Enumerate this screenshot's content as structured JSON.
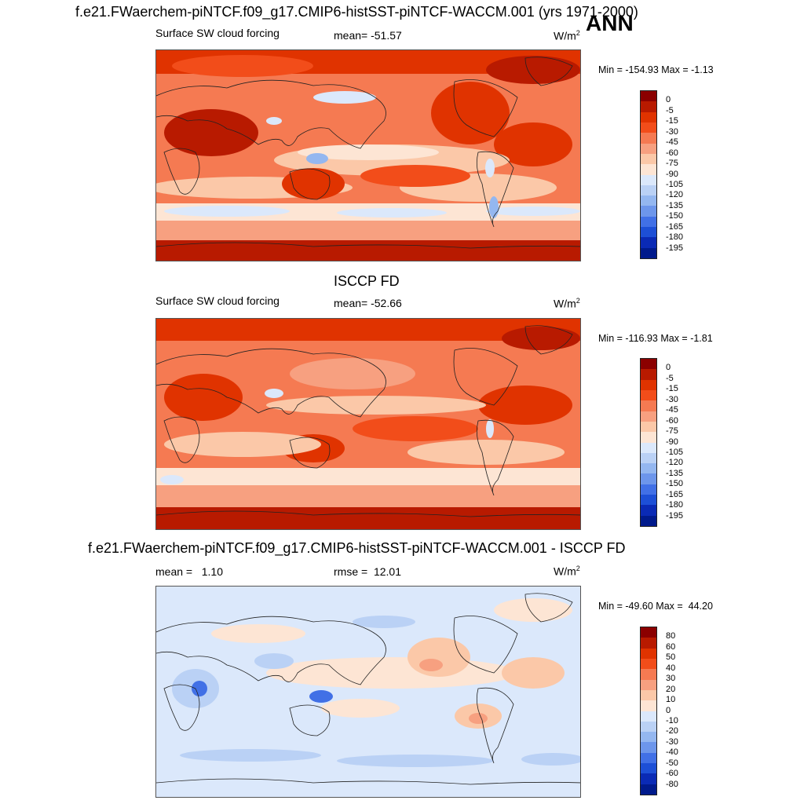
{
  "figure": {
    "title": "f.e21.FWaerchem-piNTCF.f09_g17.CMIP6-histSST-piNTCF-WACCM.001 (yrs 1971-2000)",
    "season": "ANN"
  },
  "panels": [
    {
      "id": "model",
      "heading": "",
      "left_label": "Surface SW cloud forcing",
      "center_label": "mean= -51.57",
      "unit": "W/m",
      "unit_sup": "2",
      "minmax": "Min = -154.93 Max =  -1.13",
      "colorbar": [
        "0",
        "-5",
        "-15",
        "-30",
        "-45",
        "-60",
        "-75",
        "-90",
        "-105",
        "-120",
        "-135",
        "-150",
        "-165",
        "-180",
        "-195"
      ],
      "colors": [
        "#8b0000",
        "#b81a00",
        "#e03300",
        "#f24d1a",
        "#f57a52",
        "#f7a080",
        "#fbc8a8",
        "#fde5d4",
        "#dbe8fb",
        "#bad1f5",
        "#94b7f0",
        "#6d96eb",
        "#4170e6",
        "#1d4fd6",
        "#0a2ab5",
        "#001a8c"
      ]
    },
    {
      "id": "obs",
      "heading": "ISCCP FD",
      "left_label": "Surface SW cloud forcing",
      "center_label": "mean= -52.66",
      "unit": "W/m",
      "unit_sup": "2",
      "minmax": "Min = -116.93 Max =  -1.81",
      "colorbar": [
        "0",
        "-5",
        "-15",
        "-30",
        "-45",
        "-60",
        "-75",
        "-90",
        "-105",
        "-120",
        "-135",
        "-150",
        "-165",
        "-180",
        "-195"
      ],
      "colors": [
        "#8b0000",
        "#b81a00",
        "#e03300",
        "#f24d1a",
        "#f57a52",
        "#f7a080",
        "#fbc8a8",
        "#fde5d4",
        "#dbe8fb",
        "#bad1f5",
        "#94b7f0",
        "#6d96eb",
        "#4170e6",
        "#1d4fd6",
        "#0a2ab5",
        "#001a8c"
      ]
    },
    {
      "id": "diff",
      "heading": "f.e21.FWaerchem-piNTCF.f09_g17.CMIP6-histSST-piNTCF-WACCM.001 - ISCCP FD",
      "left_label": "mean =   1.10",
      "center_label": "rmse =  12.01",
      "unit": "W/m",
      "unit_sup": "2",
      "minmax": "Min = -49.60 Max =  44.20",
      "colorbar": [
        "80",
        "60",
        "50",
        "40",
        "30",
        "20",
        "10",
        "0",
        "-10",
        "-20",
        "-30",
        "-40",
        "-50",
        "-60",
        "-80"
      ],
      "colors": [
        "#8b0000",
        "#b81a00",
        "#e03300",
        "#f24d1a",
        "#f57a52",
        "#f7a080",
        "#fbc8a8",
        "#fde5d4",
        "#dbe8fb",
        "#bad1f5",
        "#94b7f0",
        "#6d96eb",
        "#4170e6",
        "#1d4fd6",
        "#0a2ab5",
        "#001a8c"
      ]
    }
  ]
}
